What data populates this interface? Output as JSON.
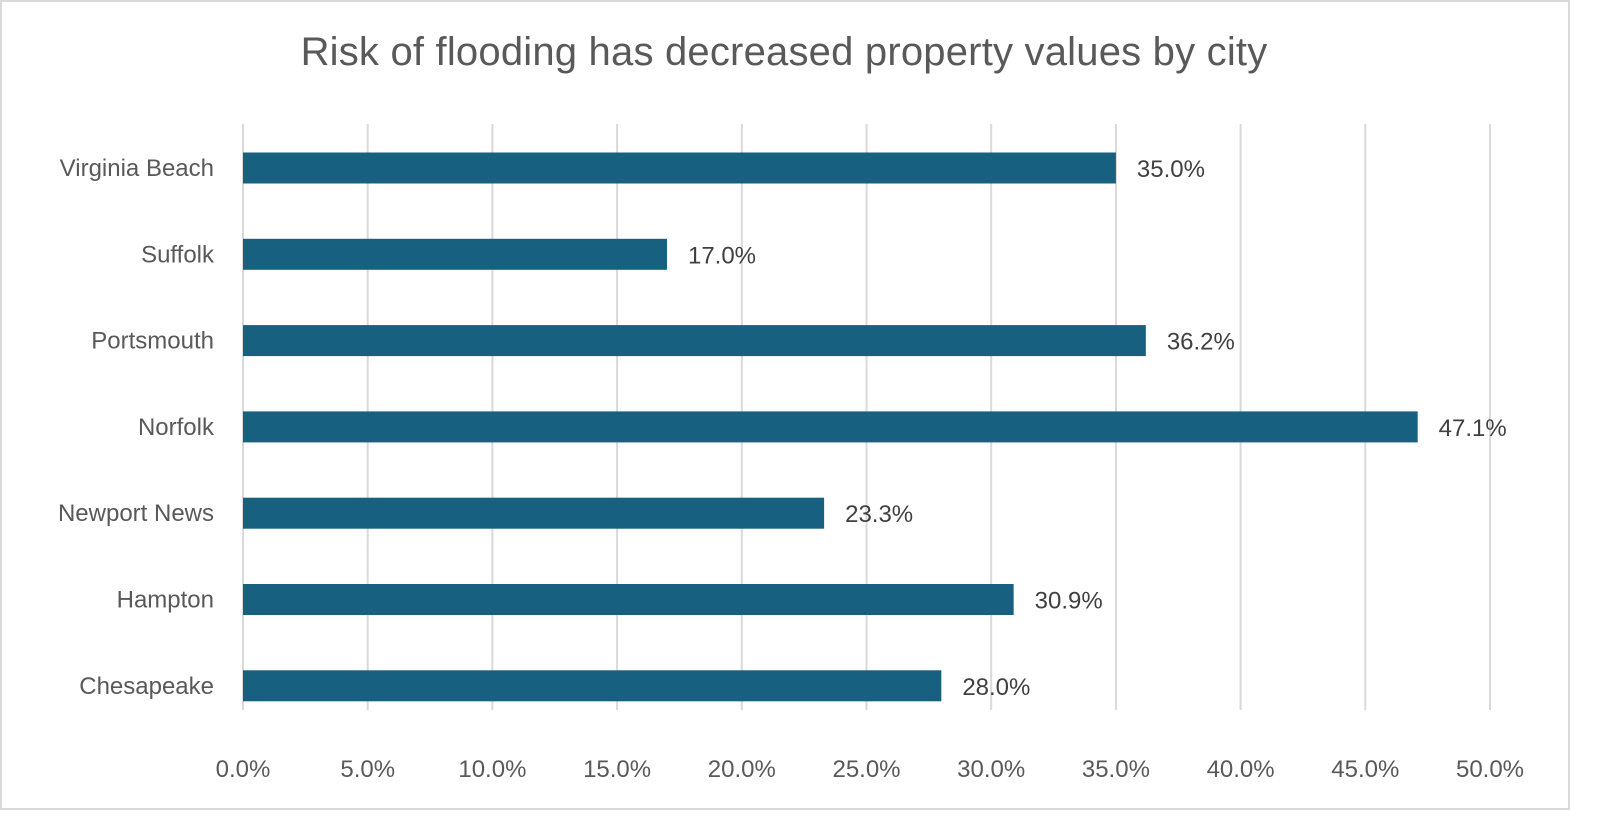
{
  "chart_data": {
    "type": "bar",
    "orientation": "horizontal",
    "title": "Risk of flooding has decreased property values by city",
    "xlabel": "",
    "ylabel": "",
    "categories": [
      "Virginia Beach",
      "Suffolk",
      "Portsmouth",
      "Norfolk",
      "Newport News",
      "Hampton",
      "Chesapeake"
    ],
    "values": [
      35.0,
      17.0,
      36.2,
      47.1,
      23.3,
      30.9,
      28.0
    ],
    "data_labels": [
      "35.0%",
      "17.0%",
      "36.2%",
      "47.1%",
      "23.3%",
      "30.9%",
      "28.0%"
    ],
    "xlim": [
      0,
      50
    ],
    "x_ticks": [
      0,
      5,
      10,
      15,
      20,
      25,
      30,
      35,
      40,
      45,
      50
    ],
    "x_tick_labels": [
      "0.0%",
      "5.0%",
      "10.0%",
      "15.0%",
      "20.0%",
      "25.0%",
      "30.0%",
      "35.0%",
      "40.0%",
      "45.0%",
      "50.0%"
    ],
    "grid": "vertical",
    "legend": "none",
    "bar_color": "#17607f"
  }
}
